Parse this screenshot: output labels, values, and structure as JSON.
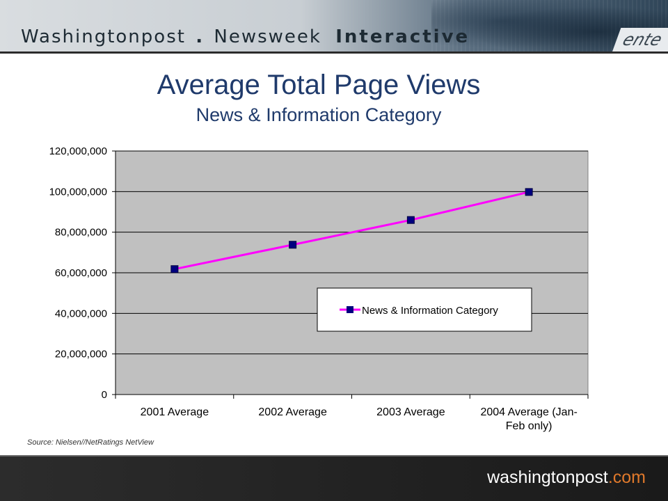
{
  "header": {
    "brand_left": "Washingtonpost",
    "brand_dot": ".",
    "brand_mid": "Newsweek",
    "brand_right": "Interactive",
    "corner_text": "ente"
  },
  "slide": {
    "title": "Average Total Page Views",
    "subtitle": "News & Information Category",
    "source": "Source: Nielsen//NetRatings NetView"
  },
  "footer": {
    "logo_main": "washingtonpost",
    "logo_suffix": ".com"
  },
  "colors": {
    "plot_bg": "#c0c0c0",
    "line": "#ff00ff",
    "marker": "#000080",
    "title": "#1f3a6b"
  },
  "chart_data": {
    "type": "line",
    "categories": [
      "2001 Average",
      "2002 Average",
      "2003 Average",
      "2004 Average (Jan-Feb only)"
    ],
    "category_label_lines": [
      [
        "2001 Average"
      ],
      [
        "2002 Average"
      ],
      [
        "2003 Average"
      ],
      [
        "2004 Average (Jan-",
        "Feb only)"
      ]
    ],
    "series": [
      {
        "name": "News & Information Category",
        "values": [
          61800000,
          73800000,
          86000000,
          99800000
        ]
      }
    ],
    "y_ticks": [
      0,
      20000000,
      40000000,
      60000000,
      80000000,
      100000000,
      120000000
    ],
    "y_tick_labels": [
      "0",
      "20,000,000",
      "40,000,000",
      "60,000,000",
      "80,000,000",
      "100,000,000",
      "120,000,000"
    ],
    "ylim": [
      0,
      120000000
    ],
    "grid": true,
    "legend_position": "inside-right",
    "title": "Average Total Page Views",
    "subtitle": "News & Information Category"
  }
}
